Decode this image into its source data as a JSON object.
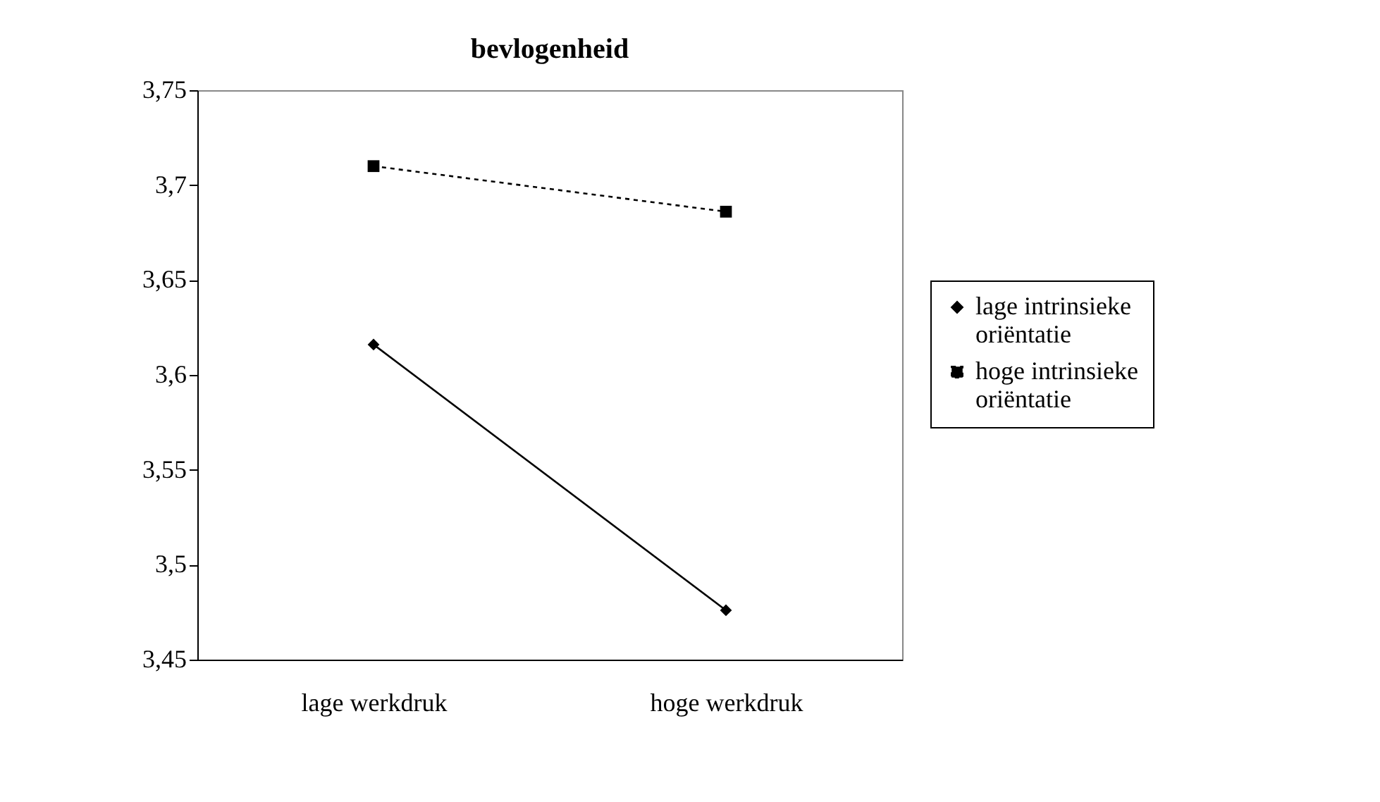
{
  "chart_data": {
    "type": "line",
    "title": "bevlogenheid",
    "categories": [
      "lage werkdruk",
      "hoge werkdruk"
    ],
    "series": [
      {
        "name": "lage intrinsieke oriëntatie",
        "color": "#000000",
        "values": [
          3.616,
          3.476
        ],
        "marker": "diamond",
        "line_style": "solid"
      },
      {
        "name": "hoge intrinsieke oriëntatie",
        "color": "#000000",
        "values": [
          3.71,
          3.686
        ],
        "marker": "square",
        "line_style": "dashed"
      }
    ],
    "ylim": [
      3.45,
      3.75
    ],
    "yticks": [
      {
        "value": 3.45,
        "label": "3,45"
      },
      {
        "value": 3.5,
        "label": "3,5"
      },
      {
        "value": 3.55,
        "label": "3,55"
      },
      {
        "value": 3.6,
        "label": "3,6"
      },
      {
        "value": 3.65,
        "label": "3,65"
      },
      {
        "value": 3.7,
        "label": "3,7"
      },
      {
        "value": 3.75,
        "label": "3,75"
      }
    ],
    "grid": false,
    "legend": "right"
  }
}
